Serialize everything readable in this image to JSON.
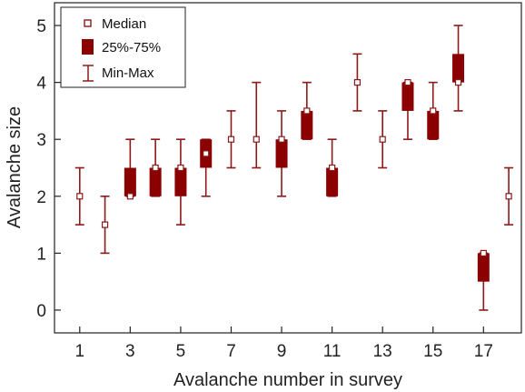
{
  "chart_data": {
    "type": "boxplot",
    "xlabel": "Avalanche number in survey",
    "ylabel": "Avalanche size",
    "xlim": [
      0,
      18.5
    ],
    "ylim": [
      -0.4,
      5.4
    ],
    "x_ticks": [
      1,
      3,
      5,
      7,
      9,
      11,
      13,
      15,
      17
    ],
    "y_ticks": [
      0,
      1,
      2,
      3,
      4,
      5
    ],
    "legend": {
      "placement": "top-left",
      "entries": [
        {
          "key": "median",
          "label": "Median"
        },
        {
          "key": "box",
          "label": "25%-75%"
        },
        {
          "key": "range",
          "label": "Min-Max"
        }
      ]
    },
    "colors": {
      "box": "#8b0000",
      "whisker": "#8b1a1a",
      "median_fill": "#ffffff"
    },
    "series": [
      {
        "x": 1,
        "min": 1.5,
        "q1": 2.0,
        "median": 2.0,
        "q3": 2.0,
        "max": 2.5
      },
      {
        "x": 2,
        "min": 1.0,
        "q1": 1.5,
        "median": 1.5,
        "q3": 1.5,
        "max": 2.0
      },
      {
        "x": 3,
        "min": 2.0,
        "q1": 2.0,
        "median": 2.0,
        "q3": 2.5,
        "max": 3.0
      },
      {
        "x": 4,
        "min": 2.0,
        "q1": 2.0,
        "median": 2.5,
        "q3": 2.5,
        "max": 3.0
      },
      {
        "x": 5,
        "min": 1.5,
        "q1": 2.0,
        "median": 2.5,
        "q3": 2.5,
        "max": 3.0
      },
      {
        "x": 6,
        "min": 2.0,
        "q1": 2.5,
        "median": 2.75,
        "q3": 3.0,
        "max": 3.0
      },
      {
        "x": 7,
        "min": 2.5,
        "q1": 3.0,
        "median": 3.0,
        "q3": 3.0,
        "max": 3.5
      },
      {
        "x": 8,
        "min": 2.5,
        "q1": 3.0,
        "median": 3.0,
        "q3": 3.0,
        "max": 4.0
      },
      {
        "x": 9,
        "min": 2.0,
        "q1": 2.5,
        "median": 3.0,
        "q3": 3.0,
        "max": 3.5
      },
      {
        "x": 10,
        "min": 3.0,
        "q1": 3.0,
        "median": 3.5,
        "q3": 3.5,
        "max": 4.0
      },
      {
        "x": 11,
        "min": 2.0,
        "q1": 2.0,
        "median": 2.5,
        "q3": 2.5,
        "max": 3.0
      },
      {
        "x": 12,
        "min": 3.5,
        "q1": 4.0,
        "median": 4.0,
        "q3": 4.0,
        "max": 4.5
      },
      {
        "x": 13,
        "min": 2.5,
        "q1": 3.0,
        "median": 3.0,
        "q3": 3.0,
        "max": 3.5
      },
      {
        "x": 14,
        "min": 3.0,
        "q1": 3.5,
        "median": 4.0,
        "q3": 4.0,
        "max": 4.0
      },
      {
        "x": 15,
        "min": 3.0,
        "q1": 3.0,
        "median": 3.5,
        "q3": 3.5,
        "max": 4.0
      },
      {
        "x": 16,
        "min": 3.5,
        "q1": 4.0,
        "median": 4.0,
        "q3": 4.5,
        "max": 5.0
      },
      {
        "x": 17,
        "min": 0.0,
        "q1": 0.5,
        "median": 1.0,
        "q3": 1.0,
        "max": 1.0
      },
      {
        "x": 18,
        "min": 1.5,
        "q1": 2.0,
        "median": 2.0,
        "q3": 2.0,
        "max": 2.5
      }
    ]
  }
}
